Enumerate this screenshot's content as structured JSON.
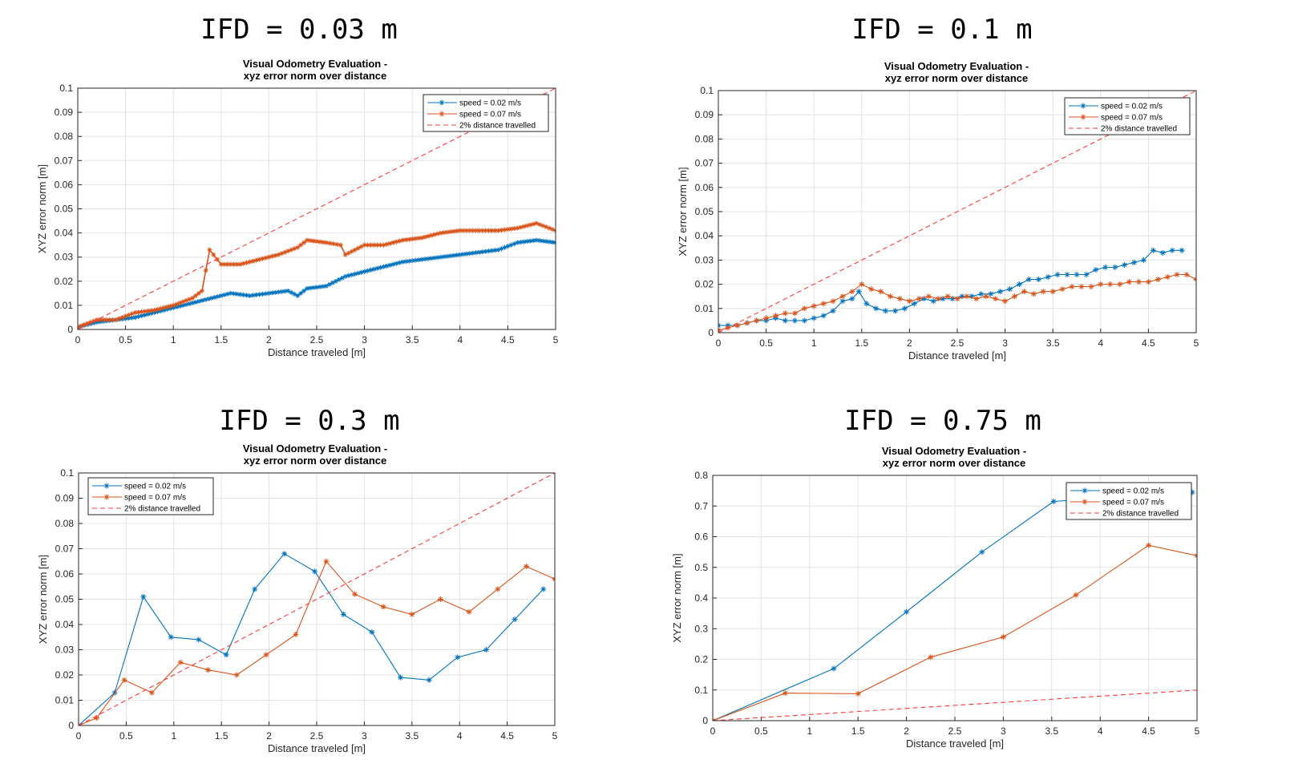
{
  "chart_data": [
    {
      "type": "line",
      "heading": "IFD = 0.03 m",
      "title": [
        "Visual Odometry Evaluation -",
        "xyz error norm over distance"
      ],
      "xlabel": "Distance traveled [m]",
      "ylabel": "XYZ error norm [m]",
      "xlim": [
        0,
        5
      ],
      "ylim": [
        0,
        0.1
      ],
      "xticks": [
        0,
        0.5,
        1,
        1.5,
        2,
        2.5,
        3,
        3.5,
        4,
        4.5,
        5
      ],
      "yticks": [
        0,
        0.01,
        0.02,
        0.03,
        0.04,
        0.05,
        0.06,
        0.07,
        0.08,
        0.09,
        0.1
      ],
      "xtick_labels": [
        "0",
        "0.5",
        "1",
        "1.5",
        "2",
        "2.5",
        "3",
        "3.5",
        "4",
        "4.5",
        "5"
      ],
      "ytick_labels": [
        "0",
        "0.01",
        "0.02",
        "0.03",
        "0.04",
        "0.05",
        "0.06",
        "0.07",
        "0.08",
        "0.09",
        "0.1"
      ],
      "grid": true,
      "legend_position": "top-right",
      "series": [
        {
          "name": "speed = 0.02 m/s",
          "color": "#0072BD",
          "marker": "*",
          "dense": true,
          "x": [
            0,
            0.2,
            0.4,
            0.6,
            0.8,
            1.0,
            1.2,
            1.4,
            1.6,
            1.8,
            2.0,
            2.2,
            2.3,
            2.4,
            2.6,
            2.8,
            3.0,
            3.2,
            3.4,
            3.6,
            3.8,
            4.0,
            4.2,
            4.4,
            4.6,
            4.8,
            5.0
          ],
          "y": [
            0.001,
            0.003,
            0.004,
            0.005,
            0.007,
            0.009,
            0.011,
            0.013,
            0.015,
            0.014,
            0.015,
            0.016,
            0.014,
            0.017,
            0.018,
            0.022,
            0.024,
            0.026,
            0.028,
            0.029,
            0.03,
            0.031,
            0.032,
            0.033,
            0.036,
            0.037,
            0.036
          ]
        },
        {
          "name": "speed = 0.07 m/s",
          "color": "#D95319",
          "marker": "*",
          "dense": true,
          "x": [
            0,
            0.2,
            0.4,
            0.6,
            0.8,
            1.0,
            1.2,
            1.3,
            1.38,
            1.5,
            1.7,
            1.9,
            2.1,
            2.3,
            2.4,
            2.6,
            2.75,
            2.8,
            3.0,
            3.2,
            3.4,
            3.6,
            3.8,
            4.0,
            4.2,
            4.4,
            4.6,
            4.8,
            5.0
          ],
          "y": [
            0.001,
            0.004,
            0.004,
            0.007,
            0.008,
            0.01,
            0.013,
            0.016,
            0.033,
            0.027,
            0.027,
            0.029,
            0.031,
            0.034,
            0.037,
            0.036,
            0.035,
            0.031,
            0.035,
            0.035,
            0.037,
            0.038,
            0.04,
            0.041,
            0.041,
            0.041,
            0.042,
            0.044,
            0.041
          ]
        },
        {
          "name": "2% distance travelled",
          "color": "#FF3B3B",
          "dashed": true,
          "x": [
            0,
            5
          ],
          "y": [
            0,
            0.1
          ]
        }
      ]
    },
    {
      "type": "line",
      "heading": "IFD = 0.1 m",
      "title": [
        "Visual Odometry Evaluation -",
        "xyz error norm over distance"
      ],
      "xlabel": "Distance traveled [m]",
      "ylabel": "XYZ error norm [m]",
      "xlim": [
        0,
        5
      ],
      "ylim": [
        0,
        0.1
      ],
      "xticks": [
        0,
        0.5,
        1,
        1.5,
        2,
        2.5,
        3,
        3.5,
        4,
        4.5,
        5
      ],
      "yticks": [
        0,
        0.01,
        0.02,
        0.03,
        0.04,
        0.05,
        0.06,
        0.07,
        0.08,
        0.09,
        0.1
      ],
      "xtick_labels": [
        "0",
        "0.5",
        "1",
        "1.5",
        "2",
        "2.5",
        "3",
        "3.5",
        "4",
        "4.5",
        "5"
      ],
      "ytick_labels": [
        "0",
        "0.01",
        "0.02",
        "0.03",
        "0.04",
        "0.05",
        "0.06",
        "0.07",
        "0.08",
        "0.09",
        "0.1"
      ],
      "grid": true,
      "legend_position": "top-right",
      "series": [
        {
          "name": "speed = 0.02 m/s",
          "color": "#0072BD",
          "marker": "*",
          "x": [
            0,
            0.1,
            0.2,
            0.3,
            0.4,
            0.5,
            0.6,
            0.7,
            0.8,
            0.9,
            1.0,
            1.1,
            1.2,
            1.3,
            1.4,
            1.47,
            1.55,
            1.65,
            1.75,
            1.85,
            1.95,
            2.05,
            2.15,
            2.25,
            2.35,
            2.45,
            2.55,
            2.65,
            2.75,
            2.85,
            2.95,
            3.05,
            3.15,
            3.25,
            3.35,
            3.45,
            3.55,
            3.65,
            3.75,
            3.85,
            3.95,
            4.05,
            4.15,
            4.25,
            4.35,
            4.45,
            4.55,
            4.65,
            4.75,
            4.85
          ],
          "y": [
            0.003,
            0.003,
            0.003,
            0.004,
            0.005,
            0.005,
            0.006,
            0.005,
            0.005,
            0.005,
            0.006,
            0.007,
            0.009,
            0.013,
            0.014,
            0.017,
            0.012,
            0.01,
            0.009,
            0.009,
            0.01,
            0.012,
            0.014,
            0.013,
            0.014,
            0.014,
            0.015,
            0.015,
            0.016,
            0.016,
            0.017,
            0.018,
            0.02,
            0.022,
            0.022,
            0.023,
            0.024,
            0.024,
            0.024,
            0.024,
            0.026,
            0.027,
            0.027,
            0.028,
            0.029,
            0.03,
            0.034,
            0.033,
            0.034,
            0.034
          ]
        },
        {
          "name": "speed = 0.07 m/s",
          "color": "#D95319",
          "marker": "*",
          "x": [
            0,
            0.1,
            0.2,
            0.3,
            0.4,
            0.5,
            0.6,
            0.7,
            0.8,
            0.9,
            1.0,
            1.1,
            1.2,
            1.3,
            1.4,
            1.5,
            1.6,
            1.7,
            1.8,
            1.9,
            2.0,
            2.1,
            2.2,
            2.3,
            2.4,
            2.5,
            2.6,
            2.7,
            2.8,
            2.9,
            3.0,
            3.1,
            3.2,
            3.3,
            3.4,
            3.5,
            3.6,
            3.7,
            3.8,
            3.9,
            4.0,
            4.1,
            4.2,
            4.3,
            4.4,
            4.5,
            4.6,
            4.7,
            4.8,
            4.9,
            5.0
          ],
          "y": [
            0.001,
            0.002,
            0.003,
            0.004,
            0.005,
            0.006,
            0.007,
            0.008,
            0.008,
            0.01,
            0.011,
            0.012,
            0.013,
            0.015,
            0.017,
            0.02,
            0.018,
            0.017,
            0.015,
            0.014,
            0.013,
            0.014,
            0.015,
            0.014,
            0.015,
            0.014,
            0.015,
            0.014,
            0.015,
            0.014,
            0.013,
            0.015,
            0.017,
            0.016,
            0.017,
            0.017,
            0.018,
            0.019,
            0.019,
            0.019,
            0.02,
            0.02,
            0.02,
            0.021,
            0.021,
            0.021,
            0.022,
            0.023,
            0.024,
            0.024,
            0.022
          ]
        },
        {
          "name": "2% distance travelled",
          "color": "#FF3B3B",
          "dashed": true,
          "x": [
            0,
            5
          ],
          "y": [
            0,
            0.1
          ]
        }
      ]
    },
    {
      "type": "line",
      "heading": "IFD = 0.3 m",
      "title": [
        "Visual Odometry Evaluation -",
        "xyz error norm over distance"
      ],
      "xlabel": "Distance traveled [m]",
      "ylabel": "XYZ error norm [m]",
      "xlim": [
        0,
        5
      ],
      "ylim": [
        0,
        0.1
      ],
      "xticks": [
        0,
        0.5,
        1,
        1.5,
        2,
        2.5,
        3,
        3.5,
        4,
        4.5,
        5
      ],
      "yticks": [
        0,
        0.01,
        0.02,
        0.03,
        0.04,
        0.05,
        0.06,
        0.07,
        0.08,
        0.09,
        0.1
      ],
      "xtick_labels": [
        "0",
        "0.5",
        "1",
        "1.5",
        "2",
        "2.5",
        "3",
        "3.5",
        "4",
        "4.5",
        "5"
      ],
      "ytick_labels": [
        "0",
        "0.01",
        "0.02",
        "0.03",
        "0.04",
        "0.05",
        "0.06",
        "0.07",
        "0.08",
        "0.09",
        "0.1"
      ],
      "grid": true,
      "legend_position": "top-left",
      "series": [
        {
          "name": "speed = 0.02 m/s",
          "color": "#0072BD",
          "marker": "*",
          "x": [
            0,
            0.38,
            0.68,
            0.97,
            1.26,
            1.55,
            1.85,
            2.16,
            2.48,
            2.78,
            3.08,
            3.38,
            3.68,
            3.98,
            4.28,
            4.58,
            4.88
          ],
          "y": [
            0,
            0.013,
            0.051,
            0.035,
            0.034,
            0.028,
            0.054,
            0.068,
            0.061,
            0.044,
            0.037,
            0.019,
            0.018,
            0.027,
            0.03,
            0.042,
            0.054
          ]
        },
        {
          "name": "speed = 0.07 m/s",
          "color": "#D95319",
          "marker": "*",
          "x": [
            0,
            0.19,
            0.48,
            0.77,
            1.07,
            1.36,
            1.66,
            1.97,
            2.28,
            2.6,
            2.9,
            3.2,
            3.5,
            3.8,
            4.1,
            4.4,
            4.7,
            5.0
          ],
          "y": [
            0,
            0.003,
            0.018,
            0.013,
            0.025,
            0.022,
            0.02,
            0.028,
            0.036,
            0.065,
            0.052,
            0.047,
            0.044,
            0.05,
            0.045,
            0.054,
            0.063,
            0.058
          ]
        },
        {
          "name": "2% distance travelled",
          "color": "#FF3B3B",
          "dashed": true,
          "x": [
            0,
            5
          ],
          "y": [
            0,
            0.1
          ]
        }
      ]
    },
    {
      "type": "line",
      "heading": "IFD = 0.75 m",
      "title": [
        "Visual Odometry Evaluation -",
        "xyz error norm over distance"
      ],
      "xlabel": "Distance traveled [m]",
      "ylabel": "XYZ error norm [m]",
      "xlim": [
        0,
        5
      ],
      "ylim": [
        0,
        0.8
      ],
      "xticks": [
        0,
        0.5,
        1,
        1.5,
        2,
        2.5,
        3,
        3.5,
        4,
        4.5,
        5
      ],
      "yticks": [
        0,
        0.1,
        0.2,
        0.3,
        0.4,
        0.5,
        0.6,
        0.7,
        0.8
      ],
      "xtick_labels": [
        "0",
        "0.5",
        "1",
        "1.5",
        "2",
        "2.5",
        "3",
        "3.5",
        "4",
        "4.5",
        "5"
      ],
      "ytick_labels": [
        "0",
        "0.1",
        "0.2",
        "0.3",
        "0.4",
        "0.5",
        "0.6",
        "0.7",
        "0.8"
      ],
      "grid": true,
      "legend_position": "top-right",
      "series": [
        {
          "name": "speed = 0.02 m/s",
          "color": "#0072BD",
          "marker": "*",
          "x": [
            0,
            1.25,
            2.0,
            2.78,
            3.52,
            4.95
          ],
          "y": [
            0,
            0.17,
            0.355,
            0.55,
            0.715,
            0.745
          ]
        },
        {
          "name": "speed = 0.07 m/s",
          "color": "#D95319",
          "marker": "*",
          "x": [
            0,
            0.75,
            1.5,
            2.25,
            3.0,
            3.75,
            4.5,
            5.0
          ],
          "y": [
            0,
            0.09,
            0.088,
            0.207,
            0.273,
            0.41,
            0.572,
            0.538
          ]
        },
        {
          "name": "2% distance travelled",
          "color": "#FF3B3B",
          "dashed": true,
          "x": [
            0,
            5
          ],
          "y": [
            0,
            0.1
          ]
        }
      ]
    }
  ]
}
